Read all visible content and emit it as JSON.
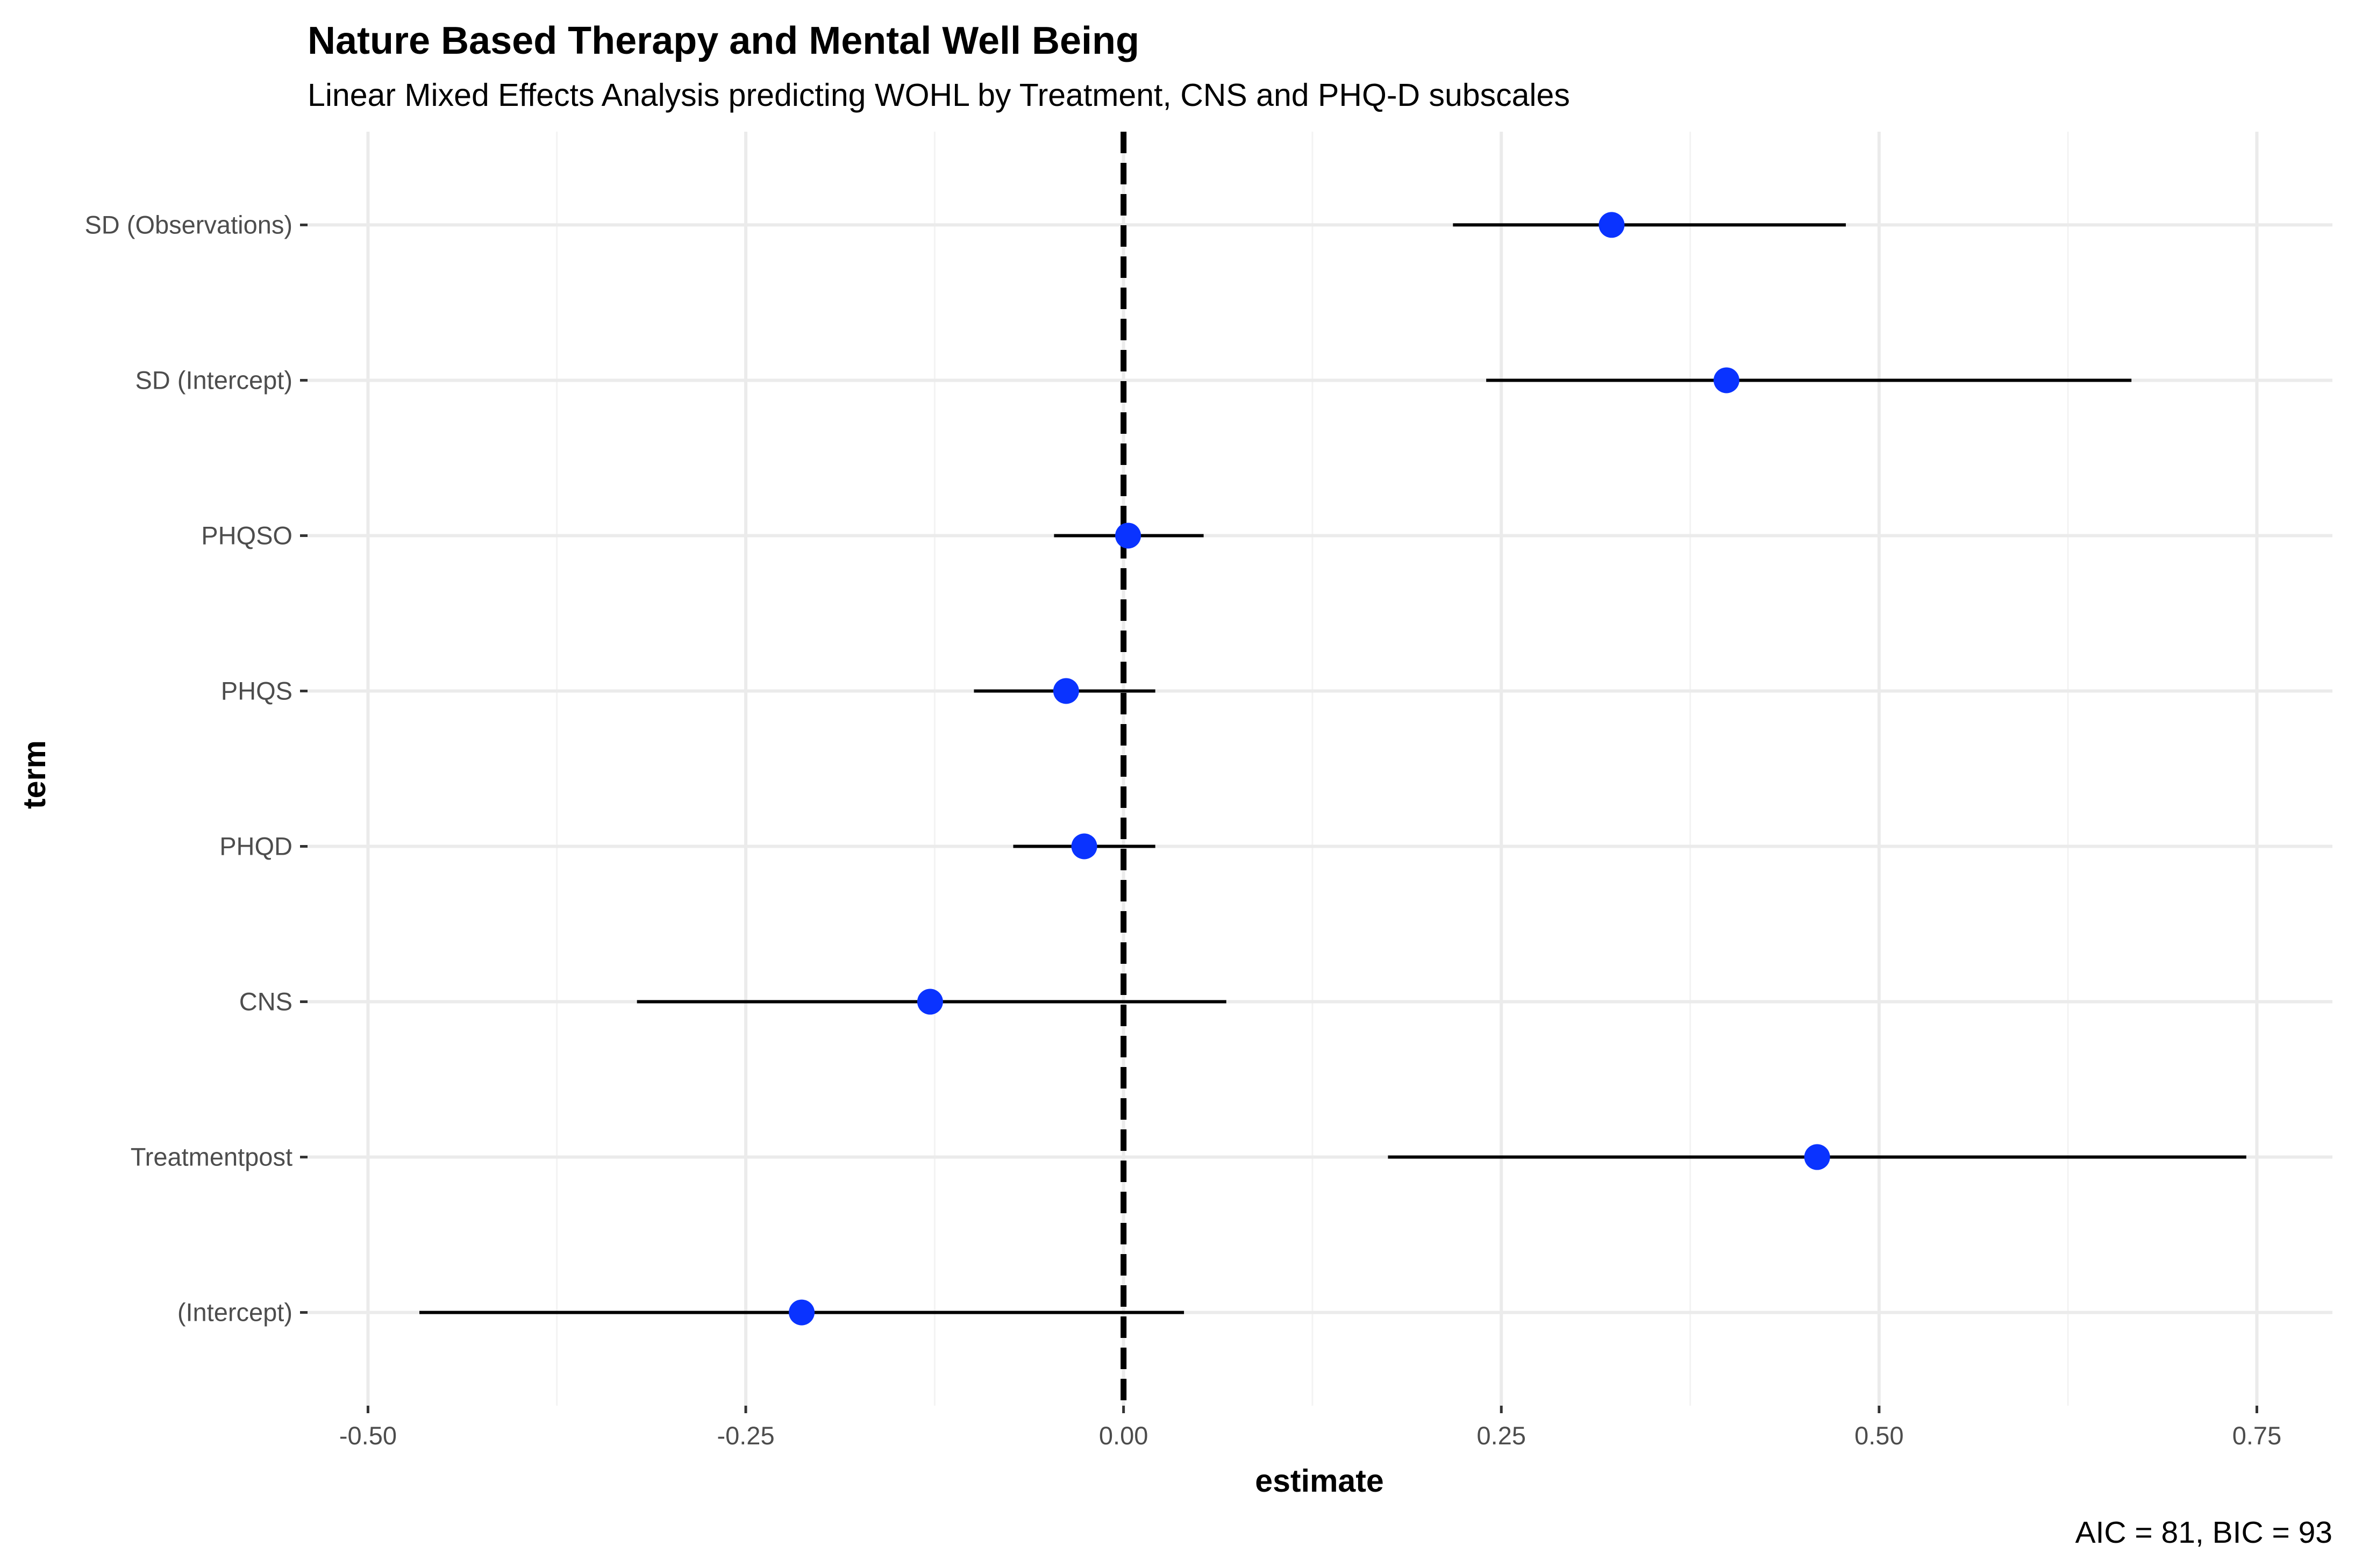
{
  "colors": {
    "point": "#0a33ff",
    "line": "#000000",
    "grid": "#ebebeb"
  },
  "chart_data": {
    "type": "scatter",
    "title": "Nature Based Therapy and Mental Well Being",
    "subtitle": "Linear Mixed Effects Analysis predicting WOHL by Treatment, CNS and PHQ-D subscales",
    "xlabel": "estimate",
    "ylabel": "term",
    "caption": "AIC = 81, BIC = 93",
    "xlim": [
      -0.54,
      0.8
    ],
    "xticks": [
      -0.5,
      -0.25,
      0.0,
      0.25,
      0.5,
      0.75
    ],
    "xtick_labels": [
      "-0.50",
      "-0.25",
      "0.00",
      "0.25",
      "0.50",
      "0.75"
    ],
    "reference_line_x": 0.0,
    "grid": true,
    "terms": [
      "SD (Observations)",
      "SD (Intercept)",
      "PHQSO",
      "PHQS",
      "PHQD",
      "CNS",
      "Treatmentpost",
      "(Intercept)"
    ],
    "estimates": [
      0.323,
      0.399,
      0.003,
      -0.038,
      -0.026,
      -0.128,
      0.459,
      -0.213
    ],
    "conf_low": [
      0.218,
      0.24,
      -0.046,
      -0.099,
      -0.073,
      -0.322,
      0.175,
      -0.466
    ],
    "conf_high": [
      0.478,
      0.667,
      0.053,
      0.021,
      0.021,
      0.068,
      0.743,
      0.04
    ]
  }
}
